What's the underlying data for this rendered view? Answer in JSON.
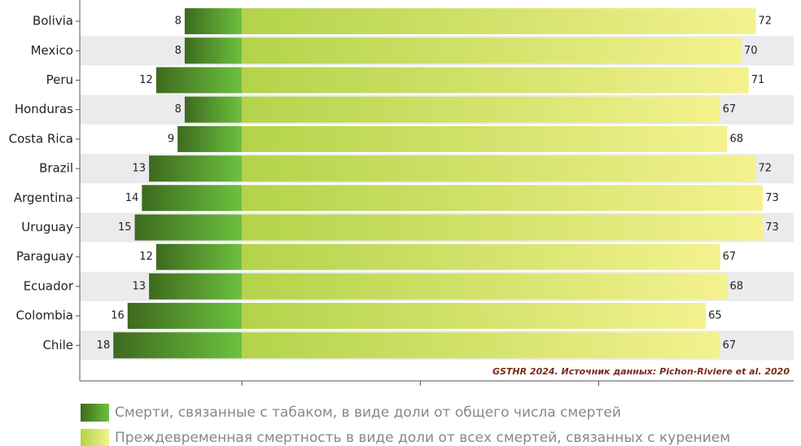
{
  "chart_data": {
    "type": "diverging-bar",
    "categories": [
      "Bolivia",
      "Mexico",
      "Peru",
      "Honduras",
      "Costa Rica",
      "Brazil",
      "Argentina",
      "Uruguay",
      "Paraguay",
      "Ecuador",
      "Colombia",
      "Chile"
    ],
    "series": [
      {
        "name": "Смерти, связанные с табаком, в виде доли от общего числа смертей",
        "color": [
          "#3e6a1e",
          "#6cc13f"
        ],
        "values": [
          8,
          8,
          12,
          8,
          9,
          13,
          14,
          15,
          12,
          13,
          16,
          18
        ]
      },
      {
        "name": "Преждевременная смертность в виде доли от всех смертей, связанных с курением",
        "color": [
          "#b3d34a",
          "#f4f28e"
        ],
        "values": [
          72,
          70,
          71,
          67,
          68,
          72,
          73,
          73,
          67,
          68,
          65,
          67
        ]
      }
    ],
    "xlim": [
      -22.7,
      77.3
    ],
    "xticks": [
      0,
      25,
      50
    ],
    "annotation": "GSTHR 2024. Источник данных: Pichon-Riviere et al. 2020"
  }
}
